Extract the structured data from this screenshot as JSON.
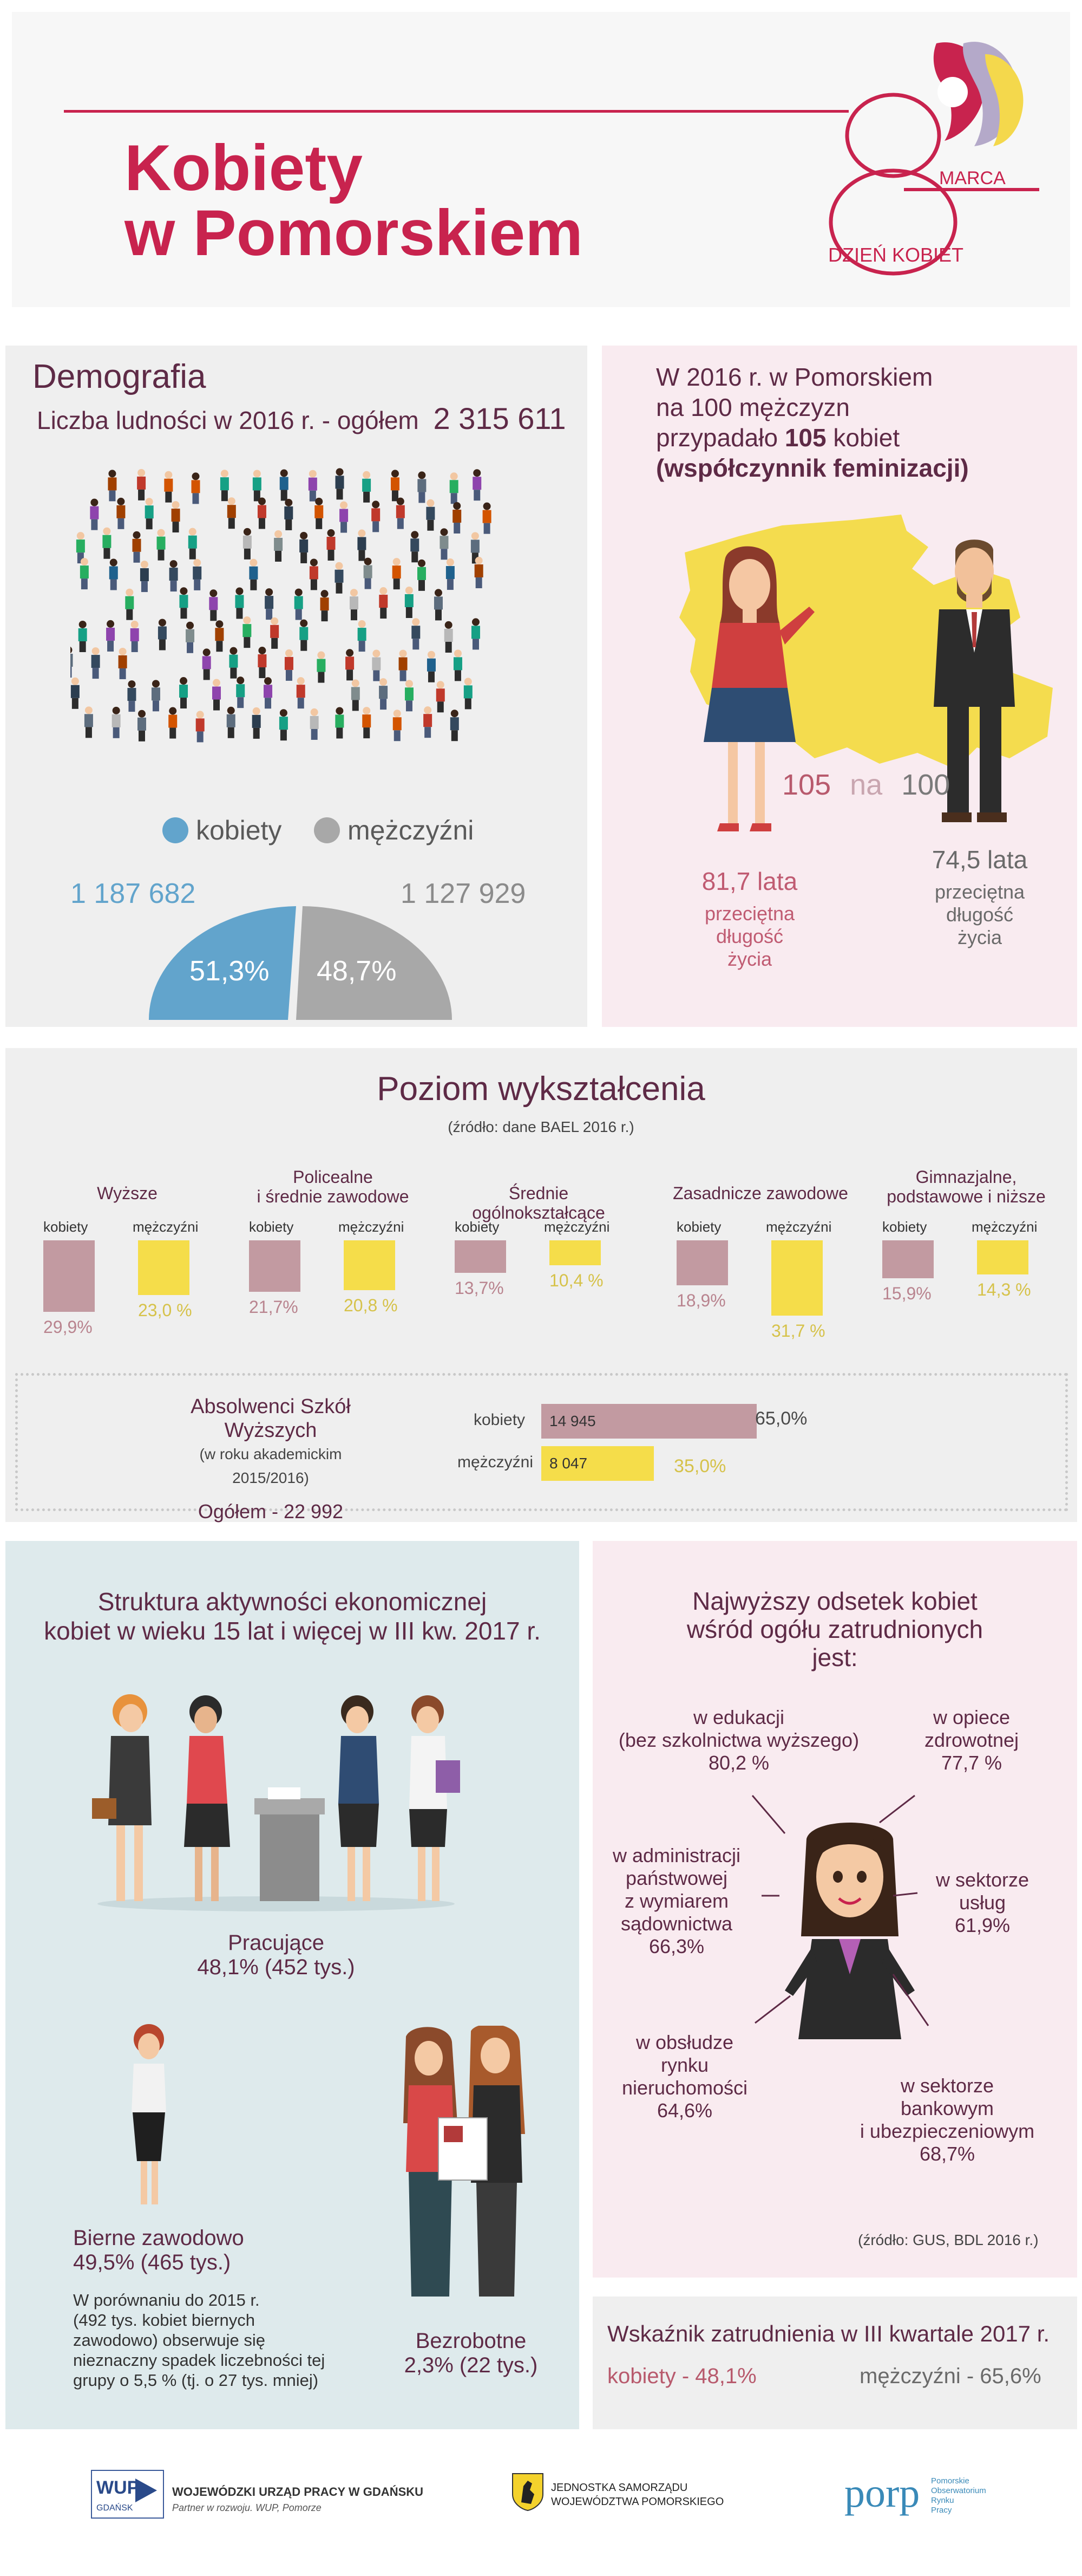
{
  "colors": {
    "accent": "#c8234e",
    "plum": "#5e2a46",
    "blue": "#62a4cc",
    "grey": "#a8a8a8",
    "yellow": "#f5dd4a",
    "mauve": "#c29aa1"
  },
  "header": {
    "title_line1": "Kobiety",
    "title_line2": "w Pomorskiem",
    "logo_number": "8",
    "logo_marca": "MARCA",
    "logo_day": "DZIEŃ KOBIET"
  },
  "demography": {
    "title": "Demografia",
    "population_label": "Liczba ludności w 2016 r. - ogółem",
    "population_value": "2 315 611",
    "legend_women": "kobiety",
    "legend_men": "mężczyźni",
    "women_count": "1 187 682",
    "men_count": "1 127 929",
    "women_pct": "51,3%",
    "men_pct": "48,7%"
  },
  "feminization": {
    "line1": "W 2016 r. w Pomorskiem",
    "line2": "na 100 mężczyzn",
    "line3_a": "przypadało ",
    "line3_b": "105",
    "line3_c": " kobiet",
    "line4_a": "(",
    "line4_b": "współczynnik feminizacji",
    "line4_c": ")",
    "ratio_women": "105",
    "ratio_na": "na",
    "ratio_men": "100",
    "life_women_value": "81,7 lata",
    "life_women_label": [
      "przeciętna",
      "długość",
      "życia"
    ],
    "life_men_value": "74,5 lata",
    "life_men_label": [
      "przeciętna",
      "długość",
      "życia"
    ]
  },
  "education": {
    "title": "Poziom wykształcenia",
    "source": "(źródło: dane BAEL 2016 r.)",
    "groups": [
      {
        "label": [
          "Wyższe"
        ],
        "women_label": "kobiety",
        "men_label": "mężczyźni",
        "women": "29,9%",
        "men": "23,0 %",
        "women_value": 29.9,
        "men_value": 23.0
      },
      {
        "label": [
          "Policealne",
          "i średnie zawodowe"
        ],
        "women_label": "kobiety",
        "men_label": "mężczyźni",
        "women": "21,7%",
        "men": "20,8 %",
        "women_value": 21.7,
        "men_value": 20.8
      },
      {
        "label": [
          "Średnie ogólnokształcące"
        ],
        "women_label": "kobiety",
        "men_label": "mężczyźni",
        "women": "13,7%",
        "men": "10,4 %",
        "women_value": 13.7,
        "men_value": 10.4
      },
      {
        "label": [
          "Zasadnicze zawodowe"
        ],
        "women_label": "kobiety",
        "men_label": "mężczyźni",
        "women": "18,9%",
        "men": "31,7 %",
        "women_value": 18.9,
        "men_value": 31.7
      },
      {
        "label": [
          "Gimnazjalne,",
          "podstawowe i niższe"
        ],
        "women_label": "kobiety",
        "men_label": "mężczyźni",
        "women": "15,9%",
        "men": "14,3 %",
        "women_value": 15.9,
        "men_value": 14.3
      }
    ],
    "graduates": {
      "title1": "Absolwenci Szkół",
      "title2": "Wyższych",
      "subtitle": "(w roku akademickim 2015/2016)",
      "total": "Ogółem - 22 992",
      "women_label": "kobiety",
      "women_count": "14 945",
      "women_pct": "65,0%",
      "women_share": 65.0,
      "men_label": "mężczyźni",
      "men_count": "8 047",
      "men_pct": "35,0%",
      "men_share": 35.0
    }
  },
  "activity": {
    "title1": "Struktura aktywności ekonomicznej",
    "title2": "kobiet w wieku 15 lat i więcej w III kw. 2017 r.",
    "working_label": "Pracujące",
    "working_value": "48,1% (452 tys.)",
    "inactive_label": "Bierne zawodowo",
    "inactive_value": "49,5% (465 tys.)",
    "inactive_note": [
      "W porównaniu do 2015 r.",
      "(492 tys. kobiet biernych",
      "zawodowo) obserwuje się",
      "nieznaczny spadek liczebności tej",
      "grupy o 5,5 % (tj. o 27 tys. mniej)"
    ],
    "unemployed_label": "Bezrobotne",
    "unemployed_value": "2,3% (22 tys.)"
  },
  "employment": {
    "title": [
      "Najwyższy odsetek kobiet",
      "wśród ogółu zatrudnionych",
      "jest:"
    ],
    "items": [
      {
        "lines": [
          "w edukacji",
          "(bez szkolnictwa wyższego)"
        ],
        "value": "80,2 %"
      },
      {
        "lines": [
          "w opiece",
          "zdrowotnej"
        ],
        "value": "77,7 %"
      },
      {
        "lines": [
          "w administracji",
          "państwowej",
          "z wymiarem",
          "sądownictwa"
        ],
        "value": "66,3%"
      },
      {
        "lines": [
          "w sektorze",
          "usług"
        ],
        "value": "61,9%"
      },
      {
        "lines": [
          "w obsłudze",
          "rynku",
          "nieruchomości"
        ],
        "value": "64,6%"
      },
      {
        "lines": [
          "w sektorze",
          "bankowym",
          "i ubezpieczeniowym"
        ],
        "value": "68,7%"
      }
    ],
    "source": "(źródło: GUS, BDL 2016 r.)",
    "rate_title": "Wskaźnik zatrudnienia w III kwartale 2017 r.",
    "rate_women": "kobiety - 48,1%",
    "rate_men": "mężczyźni - 65,6%"
  },
  "footer": {
    "wup_logo": "WUP",
    "wup_sub": "GDAŃSK",
    "wup_name": "WOJEWÓDZKI URZĄD PRACY W GDAŃSKU",
    "wup_tagline": "Partner w rozwoju. WUP, Pomorze",
    "region_name1": "JEDNOSTKA SAMORZĄDU",
    "region_name2": "WOJEWÓDZTWA POMORSKIEGO",
    "porp_logo": "porp",
    "porp_name": [
      "Pomorskie",
      "Obserwatorium",
      "Rynku",
      "Pracy"
    ]
  }
}
